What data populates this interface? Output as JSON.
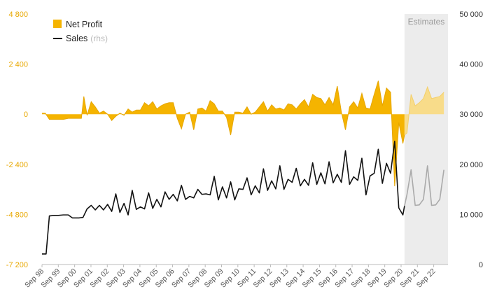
{
  "chart_data": {
    "type": "area",
    "legend_position": "top-left",
    "grid": false,
    "colors": {
      "net_profit": "#f5b400",
      "net_profit_estimate": "#f8dc8a",
      "sales": "#111111",
      "sales_estimate": "#aaaaaa",
      "estimates_band": "#ececec",
      "left_axis": "#e8a800",
      "right_axis": "#333333"
    },
    "legend": {
      "net_profit": "Net Profit",
      "sales": "Sales",
      "sales_note": "(rhs)"
    },
    "estimates_label": "Estimates",
    "y_left": {
      "ticks": [
        "4 800",
        "2 400",
        "0",
        "-2 400",
        "-4 800",
        "-7 200"
      ],
      "tick_values": [
        4800,
        2400,
        0,
        -2400,
        -4800,
        -7200
      ],
      "range": [
        -7200,
        4800
      ]
    },
    "y_right": {
      "ticks": [
        "50 000",
        "40 000",
        "30 000",
        "20 000",
        "10 000",
        "0"
      ],
      "tick_values": [
        50000,
        40000,
        30000,
        20000,
        10000,
        0
      ],
      "range": [
        0,
        50000
      ]
    },
    "x_labels": [
      "Sep 98",
      "Sep 99",
      "Sep 00",
      "Sep 01",
      "Sep 02",
      "Sep 03",
      "Sep 04",
      "Sep 05",
      "Sep 06",
      "Sep 07",
      "Sep 08",
      "Sep 09",
      "Sep 10",
      "Sep 11",
      "Sep 12",
      "Sep 13",
      "Sep 14",
      "Sep 15",
      "Sep 16",
      "Sep 17",
      "Sep 18",
      "Sep 19",
      "Sep 20",
      "Sep 21",
      "Sep 22"
    ],
    "estimates_start": 2020.1,
    "x_range": [
      1998.0,
      2022.75
    ],
    "net_profit": [
      [
        1998.0,
        50
      ],
      [
        1998.2,
        50
      ],
      [
        1998.45,
        -250
      ],
      [
        1998.75,
        -250
      ],
      [
        1999.0,
        -250
      ],
      [
        1999.3,
        -250
      ],
      [
        1999.6,
        -200
      ],
      [
        2000.0,
        -200
      ],
      [
        2000.4,
        -200
      ],
      [
        2000.55,
        850
      ],
      [
        2000.75,
        -50
      ],
      [
        2001.0,
        600
      ],
      [
        2001.25,
        350
      ],
      [
        2001.5,
        50
      ],
      [
        2001.75,
        150
      ],
      [
        2002.0,
        0
      ],
      [
        2002.25,
        -300
      ],
      [
        2002.5,
        -100
      ],
      [
        2002.75,
        50
      ],
      [
        2003.0,
        -50
      ],
      [
        2003.25,
        250
      ],
      [
        2003.5,
        100
      ],
      [
        2003.75,
        200
      ],
      [
        2004.0,
        200
      ],
      [
        2004.25,
        550
      ],
      [
        2004.5,
        400
      ],
      [
        2004.75,
        600
      ],
      [
        2005.0,
        250
      ],
      [
        2005.25,
        400
      ],
      [
        2005.5,
        500
      ],
      [
        2005.75,
        550
      ],
      [
        2006.0,
        550
      ],
      [
        2006.25,
        -200
      ],
      [
        2006.5,
        -700
      ],
      [
        2006.75,
        0
      ],
      [
        2007.0,
        100
      ],
      [
        2007.25,
        -750
      ],
      [
        2007.5,
        250
      ],
      [
        2007.75,
        300
      ],
      [
        2008.0,
        150
      ],
      [
        2008.25,
        650
      ],
      [
        2008.5,
        500
      ],
      [
        2008.75,
        150
      ],
      [
        2009.0,
        150
      ],
      [
        2009.25,
        -150
      ],
      [
        2009.5,
        -1000
      ],
      [
        2009.75,
        100
      ],
      [
        2010.0,
        100
      ],
      [
        2010.25,
        50
      ],
      [
        2010.5,
        350
      ],
      [
        2010.75,
        0
      ],
      [
        2011.0,
        100
      ],
      [
        2011.25,
        350
      ],
      [
        2011.5,
        600
      ],
      [
        2011.75,
        150
      ],
      [
        2012.0,
        450
      ],
      [
        2012.25,
        250
      ],
      [
        2012.5,
        300
      ],
      [
        2012.75,
        200
      ],
      [
        2013.0,
        500
      ],
      [
        2013.25,
        450
      ],
      [
        2013.5,
        250
      ],
      [
        2013.75,
        500
      ],
      [
        2014.0,
        700
      ],
      [
        2014.25,
        350
      ],
      [
        2014.5,
        950
      ],
      [
        2014.75,
        800
      ],
      [
        2015.0,
        750
      ],
      [
        2015.25,
        450
      ],
      [
        2015.5,
        800
      ],
      [
        2015.75,
        450
      ],
      [
        2016.0,
        1350
      ],
      [
        2016.25,
        100
      ],
      [
        2016.5,
        -750
      ],
      [
        2016.75,
        350
      ],
      [
        2017.0,
        600
      ],
      [
        2017.25,
        300
      ],
      [
        2017.5,
        1000
      ],
      [
        2017.75,
        300
      ],
      [
        2018.0,
        250
      ],
      [
        2018.25,
        950
      ],
      [
        2018.5,
        1600
      ],
      [
        2018.75,
        400
      ],
      [
        2019.0,
        1250
      ],
      [
        2019.25,
        1050
      ],
      [
        2019.5,
        -3450
      ],
      [
        2019.75,
        -400
      ],
      [
        2020.0,
        -1400
      ],
      [
        2020.1,
        -1000
      ]
    ],
    "net_profit_estimate": [
      [
        2020.1,
        -1000
      ],
      [
        2020.25,
        -900
      ],
      [
        2020.5,
        950
      ],
      [
        2020.75,
        400
      ],
      [
        2021.0,
        550
      ],
      [
        2021.25,
        750
      ],
      [
        2021.5,
        1300
      ],
      [
        2021.75,
        750
      ],
      [
        2022.0,
        800
      ],
      [
        2022.25,
        850
      ],
      [
        2022.5,
        1050
      ]
    ],
    "sales": [
      [
        1998.0,
        2100
      ],
      [
        1998.25,
        2100
      ],
      [
        1998.45,
        9700
      ],
      [
        1998.75,
        9800
      ],
      [
        1999.0,
        9800
      ],
      [
        1999.3,
        9900
      ],
      [
        1999.6,
        9900
      ],
      [
        1999.85,
        9300
      ],
      [
        2000.0,
        9300
      ],
      [
        2000.25,
        9300
      ],
      [
        2000.5,
        9400
      ],
      [
        2000.75,
        11100
      ],
      [
        2001.0,
        11800
      ],
      [
        2001.25,
        10900
      ],
      [
        2001.5,
        11800
      ],
      [
        2001.75,
        10900
      ],
      [
        2002.0,
        12000
      ],
      [
        2002.25,
        10600
      ],
      [
        2002.5,
        14100
      ],
      [
        2002.75,
        10400
      ],
      [
        2003.0,
        12200
      ],
      [
        2003.25,
        9900
      ],
      [
        2003.5,
        14800
      ],
      [
        2003.75,
        11000
      ],
      [
        2004.0,
        11500
      ],
      [
        2004.25,
        11100
      ],
      [
        2004.5,
        14300
      ],
      [
        2004.75,
        11200
      ],
      [
        2005.0,
        13000
      ],
      [
        2005.25,
        11500
      ],
      [
        2005.5,
        14500
      ],
      [
        2005.75,
        13000
      ],
      [
        2006.0,
        14000
      ],
      [
        2006.25,
        12700
      ],
      [
        2006.5,
        15800
      ],
      [
        2006.75,
        13000
      ],
      [
        2007.0,
        13600
      ],
      [
        2007.25,
        13300
      ],
      [
        2007.5,
        15000
      ],
      [
        2007.75,
        14000
      ],
      [
        2008.0,
        14100
      ],
      [
        2008.25,
        13900
      ],
      [
        2008.5,
        17600
      ],
      [
        2008.75,
        12900
      ],
      [
        2009.0,
        15500
      ],
      [
        2009.25,
        13300
      ],
      [
        2009.5,
        16500
      ],
      [
        2009.75,
        12900
      ],
      [
        2010.0,
        15100
      ],
      [
        2010.25,
        15000
      ],
      [
        2010.5,
        17300
      ],
      [
        2010.75,
        13900
      ],
      [
        2011.0,
        15700
      ],
      [
        2011.25,
        14300
      ],
      [
        2011.5,
        19100
      ],
      [
        2011.75,
        14800
      ],
      [
        2012.0,
        16700
      ],
      [
        2012.25,
        15100
      ],
      [
        2012.5,
        19700
      ],
      [
        2012.75,
        15000
      ],
      [
        2013.0,
        17000
      ],
      [
        2013.25,
        16400
      ],
      [
        2013.5,
        19200
      ],
      [
        2013.75,
        15700
      ],
      [
        2014.0,
        17000
      ],
      [
        2014.25,
        15800
      ],
      [
        2014.5,
        20300
      ],
      [
        2014.75,
        16000
      ],
      [
        2015.0,
        18300
      ],
      [
        2015.25,
        16100
      ],
      [
        2015.5,
        20500
      ],
      [
        2015.75,
        16300
      ],
      [
        2016.0,
        18000
      ],
      [
        2016.25,
        16400
      ],
      [
        2016.5,
        22700
      ],
      [
        2016.75,
        16000
      ],
      [
        2017.0,
        17500
      ],
      [
        2017.25,
        16800
      ],
      [
        2017.5,
        21200
      ],
      [
        2017.75,
        13900
      ],
      [
        2018.0,
        17700
      ],
      [
        2018.25,
        18200
      ],
      [
        2018.5,
        23000
      ],
      [
        2018.75,
        16200
      ],
      [
        2019.0,
        20200
      ],
      [
        2019.25,
        18200
      ],
      [
        2019.5,
        24600
      ],
      [
        2019.75,
        11300
      ],
      [
        2020.0,
        9900
      ],
      [
        2020.1,
        11700
      ]
    ],
    "sales_estimate": [
      [
        2020.1,
        11700
      ],
      [
        2020.25,
        14000
      ],
      [
        2020.5,
        18900
      ],
      [
        2020.75,
        11800
      ],
      [
        2021.0,
        11900
      ],
      [
        2021.25,
        13000
      ],
      [
        2021.5,
        19700
      ],
      [
        2021.75,
        11800
      ],
      [
        2022.0,
        11900
      ],
      [
        2022.25,
        13000
      ],
      [
        2022.5,
        18900
      ]
    ]
  }
}
